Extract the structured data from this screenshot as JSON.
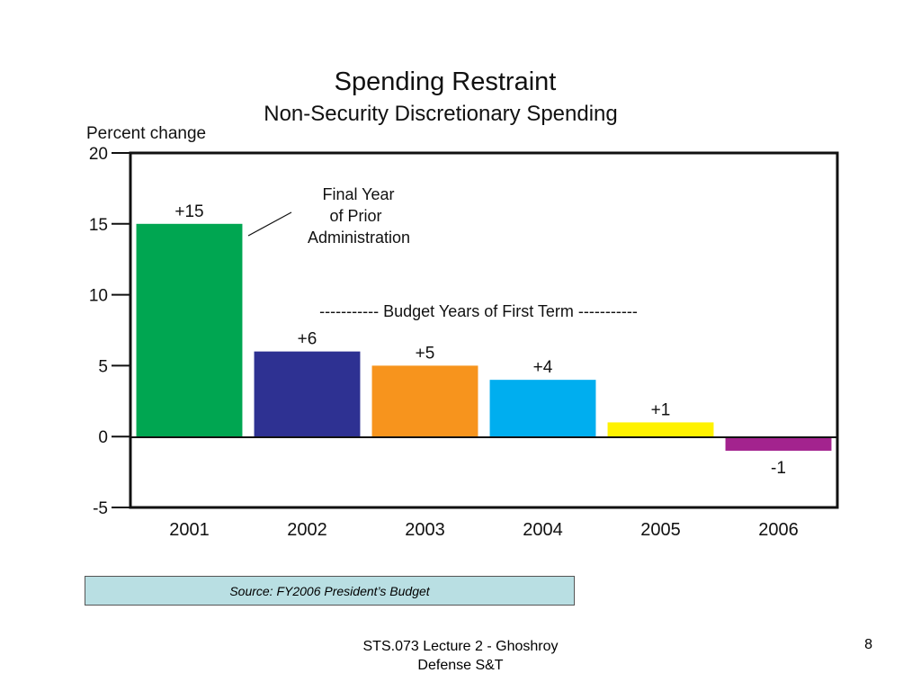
{
  "chart_data": {
    "type": "bar",
    "title": "Spending Restraint",
    "subtitle": "Non-Security Discretionary Spending",
    "xlabel": "",
    "ylabel": "Percent change",
    "categories": [
      "2001",
      "2002",
      "2003",
      "2004",
      "2005",
      "2006"
    ],
    "values": [
      15,
      6,
      5,
      4,
      1,
      -1
    ],
    "data_labels": [
      "+15",
      "+6",
      "+5",
      "+4",
      "+1",
      "-1"
    ],
    "colors": [
      "#00a651",
      "#2e3192",
      "#f7941d",
      "#00aeef",
      "#fff200",
      "#a3238e"
    ],
    "ylim": [
      -5,
      20
    ],
    "yticks": [
      20,
      15,
      10,
      5,
      0,
      -5
    ],
    "grid": false,
    "annotations": [
      {
        "id": "prior-admin",
        "lines": [
          "Final Year",
          "of Prior",
          "Administration"
        ]
      },
      {
        "id": "first-term",
        "text": "----------- Budget Years of First Term -----------"
      }
    ]
  },
  "source": "Source: FY2006 President’s Budget",
  "footer": {
    "line1": "STS.073 Lecture 2 - Ghoshroy",
    "line2": "Defense S&T",
    "page": "8"
  }
}
